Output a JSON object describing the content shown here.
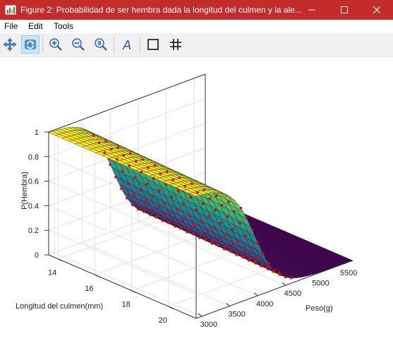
{
  "window": {
    "title": "Figure 2: Probabilidad de ser hembra dada la longitud del culmen y la ale..."
  },
  "menu": {
    "items": [
      "File",
      "Edit",
      "Tools"
    ]
  },
  "toolbar": {
    "icons": [
      "pan-icon",
      "rotate-icon",
      "zoom-in-icon",
      "zoom-out-icon",
      "zoom-reset-icon",
      "text-icon",
      "box-icon",
      "grid-icon"
    ]
  },
  "chart_data": {
    "type": "surface",
    "zlabel": "P(Hembra)",
    "xlabel": "Peso(g)",
    "ylabel": "Longitud del culmen(mm)",
    "x_ticks": [
      "3000",
      "3500",
      "4000",
      "4500",
      "5000",
      "5500"
    ],
    "y_ticks": [
      "14",
      "16",
      "18",
      "20"
    ],
    "z_ticks": [
      "0",
      "0.2",
      "0.4",
      "0.6",
      "0.8",
      "1"
    ],
    "xlim": [
      2900,
      5700
    ],
    "ylim": [
      13.5,
      21.5
    ],
    "zlim": [
      0,
      1
    ],
    "surface": {
      "model": "logistic",
      "midpoint_peso_g": 4000,
      "scale_g": 210,
      "culmen_shift_g_per_mm": 12,
      "colormap": [
        "#fde725",
        "#5ec962",
        "#21918c",
        "#3b528b",
        "#440154"
      ]
    },
    "points": {
      "color": "#ff0000",
      "peso_g": [
        3700,
        3800,
        3900,
        4000,
        4100,
        4200,
        4300,
        4400,
        4500,
        4600
      ],
      "p_hembra": [
        1,
        0.95,
        0.85,
        0.7,
        0.5,
        0.3,
        0.15,
        0.08,
        0.04,
        0
      ]
    },
    "grid": true,
    "colors": {
      "titlebar": "#c42b2b",
      "points": "#ff0000"
    }
  }
}
